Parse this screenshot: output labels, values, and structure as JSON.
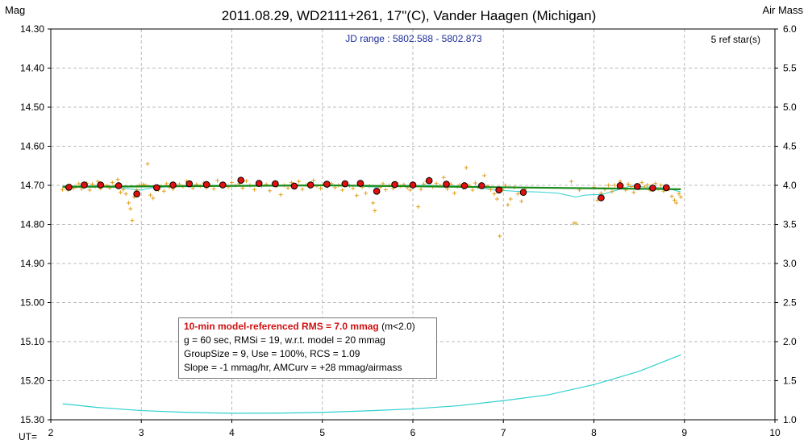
{
  "title": "2011.08.29, WD2111+261, 17\"(C), Vander Haagen (Michigan)",
  "left_axis_title": "Mag",
  "right_axis_title": "Air Mass",
  "x_axis_title": "UT=",
  "subtitle": "JD range : 5802.588 - 5802.873",
  "ref_stars": "5 ref star(s)",
  "stats": {
    "line1_bold": "10-min model-referenced RMS = 7.0 mmag",
    "line1_suffix": " (m<2.0)",
    "line2": "g = 60 sec, RMSi = 19, w.r.t. model = 20 mmag",
    "line3": "GroupSize = 9, Use = 100%, RCS = 1.09",
    "line4": "Slope = -1 mmag/hr, AMCurv = +28 mmag/airmass"
  },
  "colors": {
    "raw_points": "#e0a020",
    "binned_points": "#e01010",
    "model_line": "#1a8a1a",
    "airmass_line": "#30d0d0",
    "grid": "#bbbbbb"
  },
  "chart_data": {
    "type": "scatter",
    "xlim": [
      2,
      10
    ],
    "ylim_left": [
      15.3,
      14.3
    ],
    "ylim_right": [
      1.0,
      6.0
    ],
    "x_ticks": [
      "2",
      "3",
      "4",
      "5",
      "6",
      "7",
      "8",
      "9",
      "10"
    ],
    "y_ticks_left": [
      "14.30",
      "14.40",
      "14.50",
      "14.60",
      "14.70",
      "14.80",
      "14.90",
      "15.00",
      "15.10",
      "15.20",
      "15.30"
    ],
    "y_ticks_right": [
      "6.0",
      "5.5",
      "5.0",
      "4.5",
      "4.0",
      "3.5",
      "3.0",
      "2.5",
      "2.0",
      "1.5",
      "1.0"
    ],
    "grid": true,
    "series": [
      {
        "kind": "raw",
        "points": [
          [
            2.13,
            14.711
          ],
          [
            2.16,
            14.705
          ],
          [
            2.19,
            14.712
          ],
          [
            2.22,
            14.701
          ],
          [
            2.25,
            14.708
          ],
          [
            2.28,
            14.703
          ],
          [
            2.31,
            14.696
          ],
          [
            2.34,
            14.709
          ],
          [
            2.37,
            14.7
          ],
          [
            2.4,
            14.695
          ],
          [
            2.43,
            14.712
          ],
          [
            2.46,
            14.697
          ],
          [
            2.49,
            14.703
          ],
          [
            2.52,
            14.69
          ],
          [
            2.55,
            14.708
          ],
          [
            2.58,
            14.699
          ],
          [
            2.62,
            14.701
          ],
          [
            2.65,
            14.707
          ],
          [
            2.68,
            14.693
          ],
          [
            2.71,
            14.702
          ],
          [
            2.74,
            14.685
          ],
          [
            2.77,
            14.718
          ],
          [
            2.8,
            14.711
          ],
          [
            2.83,
            14.722
          ],
          [
            2.86,
            14.745
          ],
          [
            2.88,
            14.76
          ],
          [
            2.9,
            14.79
          ],
          [
            2.92,
            14.73
          ],
          [
            2.95,
            14.712
          ],
          [
            2.98,
            14.7
          ],
          [
            3.02,
            14.698
          ],
          [
            3.05,
            14.7
          ],
          [
            3.07,
            14.645
          ],
          [
            3.1,
            14.725
          ],
          [
            3.13,
            14.733
          ],
          [
            3.16,
            14.705
          ],
          [
            3.19,
            14.711
          ],
          [
            3.22,
            14.702
          ],
          [
            3.25,
            14.715
          ],
          [
            3.28,
            14.696
          ],
          [
            3.31,
            14.705
          ],
          [
            3.35,
            14.709
          ],
          [
            3.38,
            14.701
          ],
          [
            3.42,
            14.697
          ],
          [
            3.46,
            14.703
          ],
          [
            3.5,
            14.69
          ],
          [
            3.53,
            14.699
          ],
          [
            3.57,
            14.707
          ],
          [
            3.61,
            14.698
          ],
          [
            3.65,
            14.702
          ],
          [
            3.69,
            14.694
          ],
          [
            3.72,
            14.706
          ],
          [
            3.76,
            14.7
          ],
          [
            3.8,
            14.709
          ],
          [
            3.84,
            14.688
          ],
          [
            3.88,
            14.702
          ],
          [
            3.92,
            14.697
          ],
          [
            3.96,
            14.704
          ],
          [
            4.0,
            14.693
          ],
          [
            4.04,
            14.701
          ],
          [
            4.08,
            14.696
          ],
          [
            4.12,
            14.707
          ],
          [
            4.16,
            14.689
          ],
          [
            4.2,
            14.7
          ],
          [
            4.25,
            14.711
          ],
          [
            4.29,
            14.695
          ],
          [
            4.33,
            14.702
          ],
          [
            4.38,
            14.698
          ],
          [
            4.42,
            14.714
          ],
          [
            4.46,
            14.696
          ],
          [
            4.5,
            14.702
          ],
          [
            4.54,
            14.724
          ],
          [
            4.58,
            14.7
          ],
          [
            4.62,
            14.707
          ],
          [
            4.66,
            14.693
          ],
          [
            4.7,
            14.703
          ],
          [
            4.74,
            14.69
          ],
          [
            4.78,
            14.71
          ],
          [
            4.82,
            14.699
          ],
          [
            4.86,
            14.705
          ],
          [
            4.9,
            14.688
          ],
          [
            4.94,
            14.702
          ],
          [
            4.98,
            14.708
          ],
          [
            5.02,
            14.697
          ],
          [
            5.06,
            14.703
          ],
          [
            5.1,
            14.695
          ],
          [
            5.14,
            14.706
          ],
          [
            5.18,
            14.7
          ],
          [
            5.22,
            14.712
          ],
          [
            5.26,
            14.695
          ],
          [
            5.3,
            14.701
          ],
          [
            5.34,
            14.708
          ],
          [
            5.38,
            14.726
          ],
          [
            5.41,
            14.698
          ],
          [
            5.44,
            14.705
          ],
          [
            5.48,
            14.72
          ],
          [
            5.52,
            14.702
          ],
          [
            5.56,
            14.745
          ],
          [
            5.58,
            14.765
          ],
          [
            5.61,
            14.72
          ],
          [
            5.64,
            14.705
          ],
          [
            5.67,
            14.696
          ],
          [
            5.7,
            14.711
          ],
          [
            5.74,
            14.7
          ],
          [
            5.78,
            14.708
          ],
          [
            5.82,
            14.694
          ],
          [
            5.86,
            14.702
          ],
          [
            5.9,
            14.698
          ],
          [
            5.94,
            14.706
          ],
          [
            5.97,
            14.712
          ],
          [
            6.0,
            14.695
          ],
          [
            6.03,
            14.7
          ],
          [
            6.06,
            14.755
          ],
          [
            6.09,
            14.71
          ],
          [
            6.12,
            14.697
          ],
          [
            6.15,
            14.69
          ],
          [
            6.18,
            14.683
          ],
          [
            6.22,
            14.704
          ],
          [
            6.26,
            14.695
          ],
          [
            6.3,
            14.701
          ],
          [
            6.34,
            14.68
          ],
          [
            6.38,
            14.709
          ],
          [
            6.42,
            14.697
          ],
          [
            6.46,
            14.72
          ],
          [
            6.49,
            14.703
          ],
          [
            6.52,
            14.699
          ],
          [
            6.56,
            14.707
          ],
          [
            6.59,
            14.655
          ],
          [
            6.62,
            14.7
          ],
          [
            6.66,
            14.712
          ],
          [
            6.69,
            14.694
          ],
          [
            6.72,
            14.705
          ],
          [
            6.76,
            14.698
          ],
          [
            6.79,
            14.675
          ],
          [
            6.83,
            14.702
          ],
          [
            6.86,
            14.711
          ],
          [
            6.9,
            14.722
          ],
          [
            6.93,
            14.735
          ],
          [
            6.96,
            14.83
          ],
          [
            6.99,
            14.712
          ],
          [
            7.02,
            14.7
          ],
          [
            7.05,
            14.75
          ],
          [
            7.08,
            14.735
          ],
          [
            7.12,
            14.705
          ],
          [
            7.16,
            14.722
          ],
          [
            7.2,
            14.741
          ],
          [
            7.24,
            14.71
          ],
          [
            7.75,
            14.69
          ],
          [
            7.78,
            14.797
          ],
          [
            7.8,
            14.797
          ],
          [
            7.84,
            14.712
          ],
          [
            8.0,
            14.705
          ],
          [
            8.04,
            14.738
          ],
          [
            8.08,
            14.72
          ],
          [
            8.12,
            14.71
          ],
          [
            8.16,
            14.7
          ],
          [
            8.2,
            14.716
          ],
          [
            8.23,
            14.7
          ],
          [
            8.26,
            14.708
          ],
          [
            8.29,
            14.69
          ],
          [
            8.32,
            14.705
          ],
          [
            8.35,
            14.712
          ],
          [
            8.38,
            14.697
          ],
          [
            8.41,
            14.703
          ],
          [
            8.44,
            14.718
          ],
          [
            8.47,
            14.7
          ],
          [
            8.5,
            14.708
          ],
          [
            8.53,
            14.693
          ],
          [
            8.56,
            14.704
          ],
          [
            8.59,
            14.699
          ],
          [
            8.62,
            14.712
          ],
          [
            8.65,
            14.702
          ],
          [
            8.68,
            14.695
          ],
          [
            8.71,
            14.709
          ],
          [
            8.74,
            14.7
          ],
          [
            8.77,
            14.715
          ],
          [
            8.8,
            14.703
          ],
          [
            8.83,
            14.71
          ],
          [
            8.86,
            14.728
          ],
          [
            8.89,
            14.738
          ],
          [
            8.91,
            14.745
          ],
          [
            8.94,
            14.722
          ],
          [
            8.96,
            14.73
          ]
        ]
      },
      {
        "kind": "binned",
        "points": [
          [
            2.2,
            14.705
          ],
          [
            2.37,
            14.699
          ],
          [
            2.55,
            14.699
          ],
          [
            2.75,
            14.701
          ],
          [
            2.95,
            14.722
          ],
          [
            3.17,
            14.706
          ],
          [
            3.35,
            14.699
          ],
          [
            3.53,
            14.696
          ],
          [
            3.72,
            14.698
          ],
          [
            3.9,
            14.699
          ],
          [
            4.1,
            14.687
          ],
          [
            4.3,
            14.695
          ],
          [
            4.48,
            14.696
          ],
          [
            4.69,
            14.702
          ],
          [
            4.87,
            14.699
          ],
          [
            5.05,
            14.697
          ],
          [
            5.25,
            14.696
          ],
          [
            5.42,
            14.695
          ],
          [
            5.6,
            14.715
          ],
          [
            5.8,
            14.698
          ],
          [
            6.0,
            14.699
          ],
          [
            6.18,
            14.688
          ],
          [
            6.37,
            14.697
          ],
          [
            6.57,
            14.701
          ],
          [
            6.76,
            14.701
          ],
          [
            6.95,
            14.712
          ],
          [
            7.22,
            14.718
          ],
          [
            8.08,
            14.732
          ],
          [
            8.29,
            14.701
          ],
          [
            8.48,
            14.703
          ],
          [
            8.65,
            14.707
          ],
          [
            8.8,
            14.706
          ]
        ]
      },
      {
        "kind": "model",
        "points": [
          [
            2.13,
            14.704
          ],
          [
            5.0,
            14.7
          ],
          [
            8.96,
            14.71
          ]
        ]
      },
      {
        "kind": "airmass-trend",
        "points": [
          [
            2.13,
            14.702
          ],
          [
            2.5,
            14.701
          ],
          [
            3.0,
            14.712
          ],
          [
            3.1,
            14.707
          ],
          [
            3.5,
            14.7
          ],
          [
            4.0,
            14.7
          ],
          [
            4.5,
            14.701
          ],
          [
            5.0,
            14.7
          ],
          [
            5.4,
            14.702
          ],
          [
            5.6,
            14.705
          ],
          [
            5.8,
            14.7
          ],
          [
            6.2,
            14.7
          ],
          [
            6.6,
            14.702
          ],
          [
            6.9,
            14.712
          ],
          [
            7.2,
            14.716
          ],
          [
            7.4,
            14.717
          ],
          [
            7.6,
            14.72
          ],
          [
            7.8,
            14.73
          ],
          [
            7.9,
            14.725
          ],
          [
            8.1,
            14.723
          ],
          [
            8.4,
            14.702
          ],
          [
            8.8,
            14.707
          ],
          [
            8.96,
            14.717
          ]
        ]
      },
      {
        "kind": "airmass",
        "axis": "right",
        "points": [
          [
            2.13,
            1.205
          ],
          [
            2.5,
            1.16
          ],
          [
            3.0,
            1.118
          ],
          [
            3.5,
            1.095
          ],
          [
            4.0,
            1.084
          ],
          [
            4.5,
            1.085
          ],
          [
            5.0,
            1.095
          ],
          [
            5.5,
            1.115
          ],
          [
            6.0,
            1.14
          ],
          [
            6.5,
            1.18
          ],
          [
            7.0,
            1.245
          ],
          [
            7.5,
            1.32
          ],
          [
            8.0,
            1.45
          ],
          [
            8.5,
            1.62
          ],
          [
            8.96,
            1.83
          ]
        ]
      }
    ]
  }
}
